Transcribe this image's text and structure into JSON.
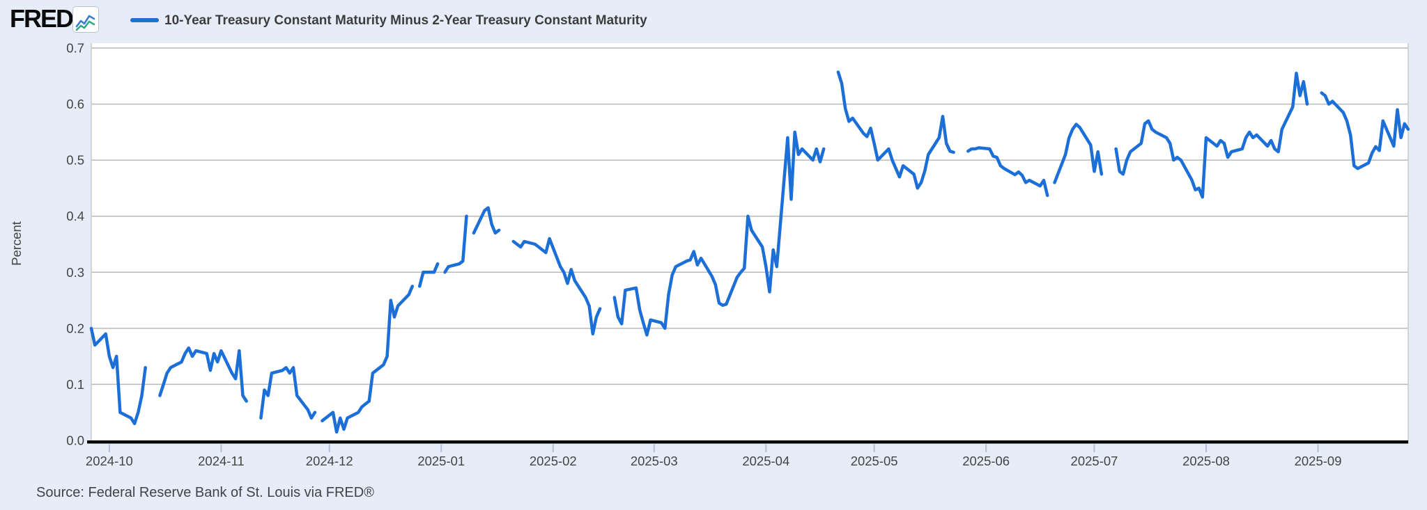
{
  "header": {
    "logo_text": "FRED",
    "logo_reg": "®",
    "series_title": "10-Year Treasury Constant Maturity Minus 2-Year Treasury Constant Maturity"
  },
  "footer": {
    "source_text": "Source: Federal Reserve Bank of St. Louis via FRED®"
  },
  "colors": {
    "page_bg": "#e7edf8",
    "plot_bg": "#ffffff",
    "line": "#1d6fd8",
    "grid": "#b9b9b9",
    "plot_border": "#c9c9c9",
    "axis_black": "#000000",
    "tick_text": "#444444",
    "tick_mark": "#b3bfd9",
    "icon_line1": "#3b7bd4",
    "icon_line2": "#2fa98c"
  },
  "chart_data": {
    "type": "line",
    "title": "10-Year Treasury Constant Maturity Minus 2-Year Treasury Constant Maturity",
    "xlabel": "",
    "ylabel": "Percent",
    "ylim": [
      0,
      0.7125
    ],
    "y_ticks": [
      0.0,
      0.1,
      0.2,
      0.3,
      0.4,
      0.5,
      0.6,
      0.7
    ],
    "x_tick_labels": [
      "2024-10",
      "2024-11",
      "2024-12",
      "2025-01",
      "2025-02",
      "2025-03",
      "2025-04",
      "2025-05",
      "2025-06",
      "2025-07",
      "2025-08",
      "2025-09"
    ],
    "x_tick_dates": [
      "2024-10-01",
      "2024-11-01",
      "2024-12-01",
      "2025-01-01",
      "2025-02-01",
      "2025-03-01",
      "2025-04-01",
      "2025-05-01",
      "2025-06-01",
      "2025-07-01",
      "2025-08-01",
      "2025-09-01"
    ],
    "x_range": [
      "2024-09-26",
      "2025-09-26"
    ],
    "grid": true,
    "legend_position": "top-left",
    "series": [
      {
        "name": "10-Year Treasury Constant Maturity Minus 2-Year Treasury Constant Maturity",
        "units": "Percent",
        "points": [
          [
            "2024-09-26",
            0.2
          ],
          [
            "2024-09-27",
            0.17
          ],
          [
            "2024-09-30",
            0.19
          ],
          [
            "2024-10-01",
            0.15
          ],
          [
            "2024-10-02",
            0.13
          ],
          [
            "2024-10-03",
            0.15
          ],
          [
            "2024-10-04",
            0.05
          ],
          [
            "2024-10-07",
            0.04
          ],
          [
            "2024-10-08",
            0.03
          ],
          [
            "2024-10-09",
            0.05
          ],
          [
            "2024-10-10",
            0.08
          ],
          [
            "2024-10-11",
            0.13
          ],
          [
            "2024-10-14",
            null
          ],
          [
            "2024-10-15",
            0.08
          ],
          [
            "2024-10-16",
            0.1
          ],
          [
            "2024-10-17",
            0.12
          ],
          [
            "2024-10-18",
            0.13
          ],
          [
            "2024-10-21",
            0.14
          ],
          [
            "2024-10-22",
            0.155
          ],
          [
            "2024-10-23",
            0.165
          ],
          [
            "2024-10-24",
            0.15
          ],
          [
            "2024-10-25",
            0.16
          ],
          [
            "2024-10-28",
            0.155
          ],
          [
            "2024-10-29",
            0.125
          ],
          [
            "2024-10-30",
            0.155
          ],
          [
            "2024-10-31",
            0.14
          ],
          [
            "2024-11-01",
            0.16
          ],
          [
            "2024-11-04",
            0.12
          ],
          [
            "2024-11-05",
            0.11
          ],
          [
            "2024-11-06",
            0.16
          ],
          [
            "2024-11-07",
            0.08
          ],
          [
            "2024-11-08",
            0.07
          ],
          [
            "2024-11-11",
            null
          ],
          [
            "2024-11-12",
            0.04
          ],
          [
            "2024-11-13",
            0.09
          ],
          [
            "2024-11-14",
            0.08
          ],
          [
            "2024-11-15",
            0.12
          ],
          [
            "2024-11-18",
            0.125
          ],
          [
            "2024-11-19",
            0.13
          ],
          [
            "2024-11-20",
            0.12
          ],
          [
            "2024-11-21",
            0.13
          ],
          [
            "2024-11-22",
            0.08
          ],
          [
            "2024-11-25",
            0.055
          ],
          [
            "2024-11-26",
            0.04
          ],
          [
            "2024-11-27",
            0.05
          ],
          [
            "2024-11-28",
            null
          ],
          [
            "2024-11-29",
            0.035
          ],
          [
            "2024-12-02",
            0.05
          ],
          [
            "2024-12-03",
            0.015
          ],
          [
            "2024-12-04",
            0.04
          ],
          [
            "2024-12-05",
            0.02
          ],
          [
            "2024-12-06",
            0.04
          ],
          [
            "2024-12-09",
            0.05
          ],
          [
            "2024-12-10",
            0.06
          ],
          [
            "2024-12-11",
            0.065
          ],
          [
            "2024-12-12",
            0.07
          ],
          [
            "2024-12-13",
            0.12
          ],
          [
            "2024-12-16",
            0.135
          ],
          [
            "2024-12-17",
            0.15
          ],
          [
            "2024-12-18",
            0.25
          ],
          [
            "2024-12-19",
            0.22
          ],
          [
            "2024-12-20",
            0.24
          ],
          [
            "2024-12-23",
            0.26
          ],
          [
            "2024-12-24",
            0.275
          ],
          [
            "2024-12-25",
            null
          ],
          [
            "2024-12-26",
            0.275
          ],
          [
            "2024-12-27",
            0.3
          ],
          [
            "2024-12-30",
            0.3
          ],
          [
            "2024-12-31",
            0.315
          ],
          [
            "2025-01-01",
            null
          ],
          [
            "2025-01-02",
            0.3
          ],
          [
            "2025-01-03",
            0.31
          ],
          [
            "2025-01-06",
            0.315
          ],
          [
            "2025-01-07",
            0.32
          ],
          [
            "2025-01-08",
            0.4
          ],
          [
            "2025-01-09",
            null
          ],
          [
            "2025-01-10",
            0.37
          ],
          [
            "2025-01-13",
            0.41
          ],
          [
            "2025-01-14",
            0.415
          ],
          [
            "2025-01-15",
            0.385
          ],
          [
            "2025-01-16",
            0.37
          ],
          [
            "2025-01-17",
            0.375
          ],
          [
            "2025-01-20",
            null
          ],
          [
            "2025-01-21",
            0.355
          ],
          [
            "2025-01-22",
            0.35
          ],
          [
            "2025-01-23",
            0.345
          ],
          [
            "2025-01-24",
            0.355
          ],
          [
            "2025-01-27",
            0.35
          ],
          [
            "2025-01-28",
            0.345
          ],
          [
            "2025-01-29",
            0.34
          ],
          [
            "2025-01-30",
            0.335
          ],
          [
            "2025-01-31",
            0.36
          ],
          [
            "2025-02-03",
            0.31
          ],
          [
            "2025-02-04",
            0.3
          ],
          [
            "2025-02-05",
            0.28
          ],
          [
            "2025-02-06",
            0.305
          ],
          [
            "2025-02-07",
            0.285
          ],
          [
            "2025-02-10",
            0.255
          ],
          [
            "2025-02-11",
            0.24
          ],
          [
            "2025-02-12",
            0.19
          ],
          [
            "2025-02-13",
            0.22
          ],
          [
            "2025-02-14",
            0.235
          ],
          [
            "2025-02-17",
            null
          ],
          [
            "2025-02-18",
            0.255
          ],
          [
            "2025-02-19",
            0.22
          ],
          [
            "2025-02-20",
            0.208
          ],
          [
            "2025-02-21",
            0.268
          ],
          [
            "2025-02-24",
            0.272
          ],
          [
            "2025-02-25",
            0.233
          ],
          [
            "2025-02-26",
            0.21
          ],
          [
            "2025-02-27",
            0.188
          ],
          [
            "2025-02-28",
            0.215
          ],
          [
            "2025-03-03",
            0.21
          ],
          [
            "2025-03-04",
            0.2
          ],
          [
            "2025-03-05",
            0.26
          ],
          [
            "2025-03-06",
            0.295
          ],
          [
            "2025-03-07",
            0.31
          ],
          [
            "2025-03-10",
            0.32
          ],
          [
            "2025-03-11",
            0.322
          ],
          [
            "2025-03-12",
            0.337
          ],
          [
            "2025-03-13",
            0.313
          ],
          [
            "2025-03-14",
            0.325
          ],
          [
            "2025-03-17",
            0.293
          ],
          [
            "2025-03-18",
            0.278
          ],
          [
            "2025-03-19",
            0.245
          ],
          [
            "2025-03-20",
            0.241
          ],
          [
            "2025-03-21",
            0.243
          ],
          [
            "2025-03-24",
            0.291
          ],
          [
            "2025-03-25",
            0.3
          ],
          [
            "2025-03-26",
            0.307
          ],
          [
            "2025-03-27",
            0.4
          ],
          [
            "2025-03-28",
            0.375
          ],
          [
            "2025-03-31",
            0.345
          ],
          [
            "2025-04-01",
            0.31
          ],
          [
            "2025-04-02",
            0.265
          ],
          [
            "2025-04-03",
            0.34
          ],
          [
            "2025-04-04",
            0.31
          ],
          [
            "2025-04-07",
            0.54
          ],
          [
            "2025-04-08",
            0.43
          ],
          [
            "2025-04-09",
            0.55
          ],
          [
            "2025-04-10",
            0.51
          ],
          [
            "2025-04-11",
            0.52
          ],
          [
            "2025-04-14",
            0.5
          ],
          [
            "2025-04-15",
            0.52
          ],
          [
            "2025-04-16",
            0.497
          ],
          [
            "2025-04-17",
            0.52
          ],
          [
            "2025-04-18",
            null
          ],
          [
            "2025-04-21",
            0.657
          ],
          [
            "2025-04-22",
            0.637
          ],
          [
            "2025-04-23",
            0.592
          ],
          [
            "2025-04-24",
            0.569
          ],
          [
            "2025-04-25",
            0.575
          ],
          [
            "2025-04-28",
            0.548
          ],
          [
            "2025-04-29",
            0.542
          ],
          [
            "2025-04-30",
            0.557
          ],
          [
            "2025-05-01",
            0.53
          ],
          [
            "2025-05-02",
            0.5
          ],
          [
            "2025-05-05",
            0.52
          ],
          [
            "2025-05-06",
            0.5
          ],
          [
            "2025-05-07",
            0.485
          ],
          [
            "2025-05-08",
            0.47
          ],
          [
            "2025-05-09",
            0.49
          ],
          [
            "2025-05-12",
            0.475
          ],
          [
            "2025-05-13",
            0.45
          ],
          [
            "2025-05-14",
            0.46
          ],
          [
            "2025-05-15",
            0.48
          ],
          [
            "2025-05-16",
            0.51
          ],
          [
            "2025-05-19",
            0.54
          ],
          [
            "2025-05-20",
            0.578
          ],
          [
            "2025-05-21",
            0.53
          ],
          [
            "2025-05-22",
            0.516
          ],
          [
            "2025-05-23",
            0.514
          ],
          [
            "2025-05-26",
            null
          ],
          [
            "2025-05-27",
            0.516
          ],
          [
            "2025-05-28",
            0.52
          ],
          [
            "2025-05-29",
            0.52
          ],
          [
            "2025-05-30",
            0.522
          ],
          [
            "2025-06-02",
            0.52
          ],
          [
            "2025-06-03",
            0.507
          ],
          [
            "2025-06-04",
            0.505
          ],
          [
            "2025-06-05",
            0.49
          ],
          [
            "2025-06-06",
            0.485
          ],
          [
            "2025-06-09",
            0.474
          ],
          [
            "2025-06-10",
            0.479
          ],
          [
            "2025-06-11",
            0.473
          ],
          [
            "2025-06-12",
            0.46
          ],
          [
            "2025-06-13",
            0.464
          ],
          [
            "2025-06-16",
            0.454
          ],
          [
            "2025-06-17",
            0.464
          ],
          [
            "2025-06-18",
            0.437
          ],
          [
            "2025-06-19",
            null
          ],
          [
            "2025-06-20",
            0.46
          ],
          [
            "2025-06-23",
            0.51
          ],
          [
            "2025-06-24",
            0.54
          ],
          [
            "2025-06-25",
            0.555
          ],
          [
            "2025-06-26",
            0.564
          ],
          [
            "2025-06-27",
            0.558
          ],
          [
            "2025-06-30",
            0.527
          ],
          [
            "2025-07-01",
            0.48
          ],
          [
            "2025-07-02",
            0.515
          ],
          [
            "2025-07-03",
            0.475
          ],
          [
            "2025-07-04",
            null
          ],
          [
            "2025-07-07",
            0.52
          ],
          [
            "2025-07-08",
            0.48
          ],
          [
            "2025-07-09",
            0.475
          ],
          [
            "2025-07-10",
            0.5
          ],
          [
            "2025-07-11",
            0.515
          ],
          [
            "2025-07-14",
            0.53
          ],
          [
            "2025-07-15",
            0.565
          ],
          [
            "2025-07-16",
            0.57
          ],
          [
            "2025-07-17",
            0.555
          ],
          [
            "2025-07-18",
            0.55
          ],
          [
            "2025-07-21",
            0.54
          ],
          [
            "2025-07-22",
            0.53
          ],
          [
            "2025-07-23",
            0.5
          ],
          [
            "2025-07-24",
            0.505
          ],
          [
            "2025-07-25",
            0.5
          ],
          [
            "2025-07-28",
            0.465
          ],
          [
            "2025-07-29",
            0.447
          ],
          [
            "2025-07-30",
            0.45
          ],
          [
            "2025-07-31",
            0.434
          ],
          [
            "2025-08-01",
            0.54
          ],
          [
            "2025-08-04",
            0.525
          ],
          [
            "2025-08-05",
            0.535
          ],
          [
            "2025-08-06",
            0.53
          ],
          [
            "2025-08-07",
            0.505
          ],
          [
            "2025-08-08",
            0.515
          ],
          [
            "2025-08-11",
            0.52
          ],
          [
            "2025-08-12",
            0.54
          ],
          [
            "2025-08-13",
            0.55
          ],
          [
            "2025-08-14",
            0.54
          ],
          [
            "2025-08-15",
            0.545
          ],
          [
            "2025-08-18",
            0.525
          ],
          [
            "2025-08-19",
            0.535
          ],
          [
            "2025-08-20",
            0.52
          ],
          [
            "2025-08-21",
            0.515
          ],
          [
            "2025-08-22",
            0.555
          ],
          [
            "2025-08-25",
            0.595
          ],
          [
            "2025-08-26",
            0.655
          ],
          [
            "2025-08-27",
            0.615
          ],
          [
            "2025-08-28",
            0.64
          ],
          [
            "2025-08-29",
            0.6
          ],
          [
            "2025-09-01",
            null
          ],
          [
            "2025-09-02",
            0.62
          ],
          [
            "2025-09-03",
            0.615
          ],
          [
            "2025-09-04",
            0.6
          ],
          [
            "2025-09-05",
            0.605
          ],
          [
            "2025-09-08",
            0.585
          ],
          [
            "2025-09-09",
            0.57
          ],
          [
            "2025-09-10",
            0.545
          ],
          [
            "2025-09-11",
            0.49
          ],
          [
            "2025-09-12",
            0.485
          ],
          [
            "2025-09-15",
            0.495
          ],
          [
            "2025-09-16",
            0.513
          ],
          [
            "2025-09-17",
            0.524
          ],
          [
            "2025-09-18",
            0.517
          ],
          [
            "2025-09-19",
            0.57
          ],
          [
            "2025-09-22",
            0.525
          ],
          [
            "2025-09-23",
            0.59
          ],
          [
            "2025-09-24",
            0.54
          ],
          [
            "2025-09-25",
            0.565
          ],
          [
            "2025-09-26",
            0.555
          ]
        ]
      }
    ]
  }
}
